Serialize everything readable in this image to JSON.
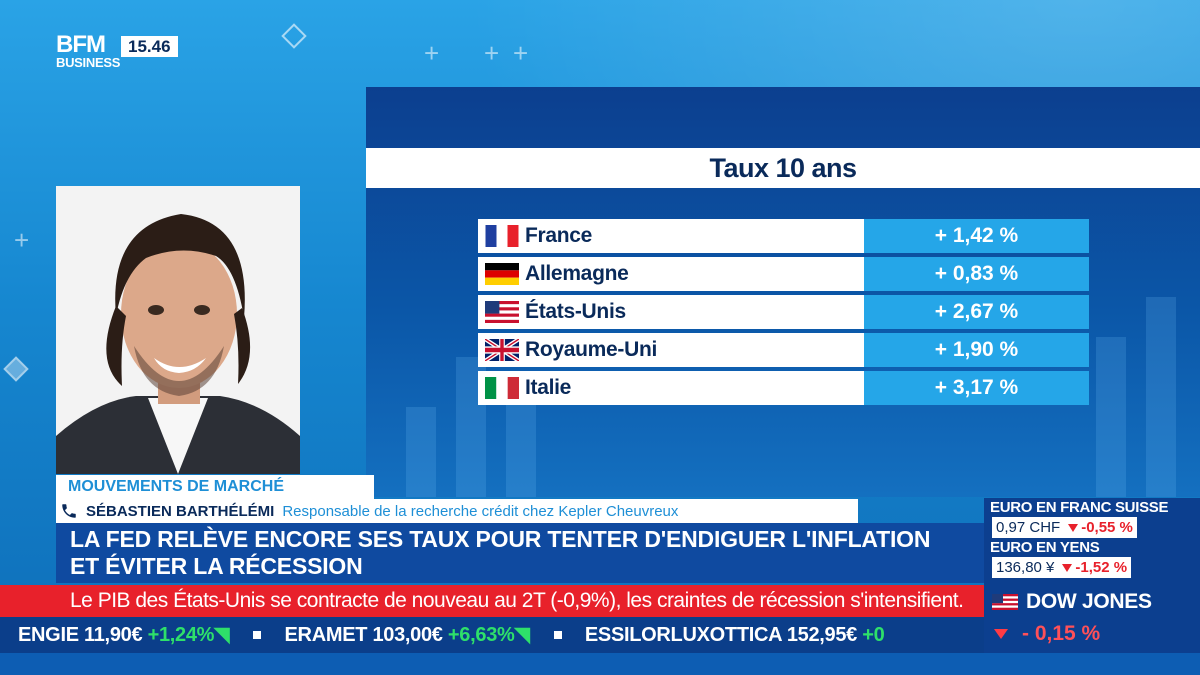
{
  "channel": {
    "logo_top": "BFM",
    "logo_bottom": "BUSINESS",
    "time": "15.46"
  },
  "graphic": {
    "title": "Taux 10 ans",
    "rows": [
      {
        "country": "France",
        "value": "+ 1,42 %",
        "flag": "flag-france-icon"
      },
      {
        "country": "Allemagne",
        "value": "+ 0,83 %",
        "flag": "flag-germany-icon"
      },
      {
        "country": "États-Unis",
        "value": "+ 2,67 %",
        "flag": "flag-usa-icon"
      },
      {
        "country": "Royaume-Uni",
        "value": "+ 1,90 %",
        "flag": "flag-uk-icon"
      },
      {
        "country": "Italie",
        "value": "+ 3,17 %",
        "flag": "flag-italy-icon"
      }
    ]
  },
  "lower_third": {
    "category": "MOUVEMENTS DE MARCHÉ",
    "guest_name": "SÉBASTIEN BARTHÉLÉMI",
    "guest_role": "Responsable de la recherche crédit chez Kepler Cheuvreux",
    "headline_line1": "LA FED RELÈVE ENCORE SES TAUX POUR TENTER D'ENDIGUER L'INFLATION",
    "headline_line2": "ET ÉVITER LA RÉCESSION"
  },
  "alert_text": "Le PIB des États-Unis se contracte de nouveau au 2T (-0,9%), les craintes de récession s'intensifient.",
  "ticker": [
    {
      "name": "ENGIE",
      "price": "11,90€",
      "change": "+1,24%"
    },
    {
      "name": "ERAMET",
      "price": "103,00€",
      "change": "+6,63%"
    },
    {
      "name": "ESSILORLUXOTTICA",
      "price": "152,95€",
      "change": "+0"
    }
  ],
  "markets": {
    "eur_chf": {
      "label": "EURO EN FRANC SUISSE",
      "value": "0,97 CHF",
      "change": "-0,55 %"
    },
    "eur_jpy": {
      "label": "EURO EN YENS",
      "value": "136,80 ¥",
      "change": "-1,52 %"
    },
    "dow": {
      "label": "DOW JONES",
      "change": "- 0,15 %"
    }
  },
  "colors": {
    "accent": "#1e8fd6",
    "navy": "#0c3f8f",
    "alert": "#e8212b",
    "positive": "#2ee06a"
  }
}
